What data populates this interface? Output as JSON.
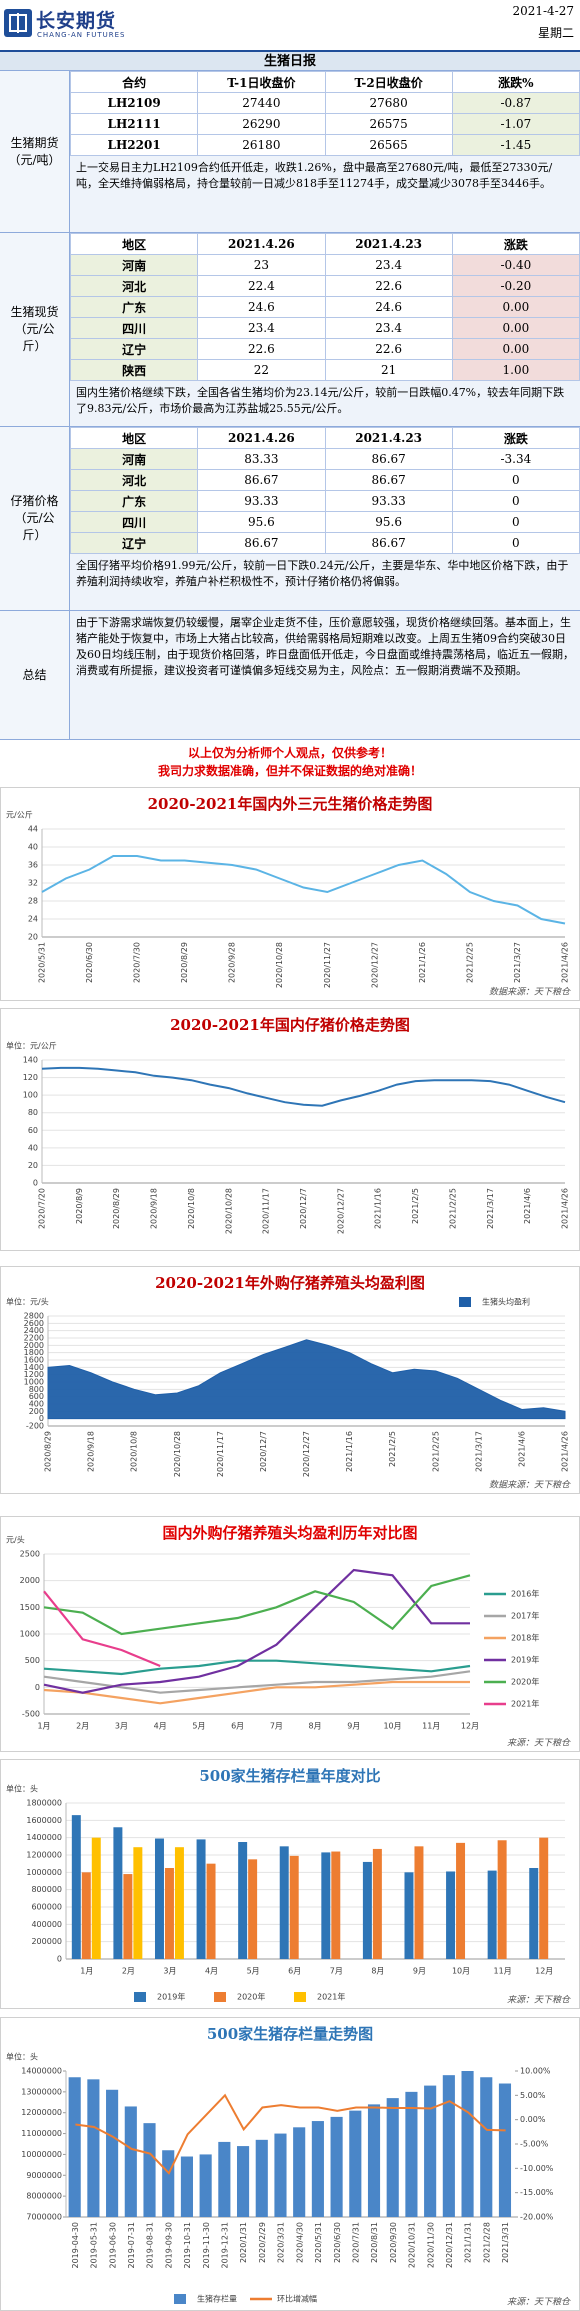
{
  "header": {
    "company": "长安期货",
    "company_en": "CHANG-AN FUTURES",
    "date": "2021-4-27",
    "weekday": "星期二"
  },
  "title": "生猪日报",
  "sections": [
    {
      "label": "生猪期货（元/吨）",
      "table": {
        "header": [
          "合约",
          "T-1日收盘价",
          "T-2日收盘价",
          "涨跌%"
        ],
        "rows": [
          [
            "LH2109",
            "27440",
            "27680",
            "-0.87"
          ],
          [
            "LH2111",
            "26290",
            "26575",
            "-1.07"
          ],
          [
            "LH2201",
            "26180",
            "26565",
            "-1.45"
          ]
        ]
      },
      "text": "上一交易日主力LH2109合约低开低走，收跌1.26%，盘中最高至27680元/吨，最低至27330元/吨，全天维持偏弱格局，持仓量较前一日减少818手至11274手，成交量减少3078手至3446手。"
    },
    {
      "label": "生猪现货（元/公斤）",
      "table": {
        "header": [
          "地区",
          "2021.4.26",
          "2021.4.23",
          "涨跌"
        ],
        "rows": [
          [
            "河南",
            "23",
            "23.4",
            "-0.40"
          ],
          [
            "河北",
            "22.4",
            "22.6",
            "-0.20"
          ],
          [
            "广东",
            "24.6",
            "24.6",
            "0.00"
          ],
          [
            "四川",
            "23.4",
            "23.4",
            "0.00"
          ],
          [
            "辽宁",
            "22.6",
            "22.6",
            "0.00"
          ],
          [
            "陕西",
            "22",
            "21",
            "1.00"
          ]
        ]
      },
      "text": "国内生猪价格继续下跌，全国各省生猪均价为23.14元/公斤，较前一日跌幅0.47%，较去年同期下跌了9.83元/公斤，市场价最高为江苏盐城25.55元/公斤。"
    },
    {
      "label": "仔猪价格（元/公斤）",
      "table": {
        "header": [
          "地区",
          "2021.4.26",
          "2021.4.23",
          "涨跌"
        ],
        "rows": [
          [
            "河南",
            "83.33",
            "86.67",
            "-3.34"
          ],
          [
            "河北",
            "86.67",
            "86.67",
            "0"
          ],
          [
            "广东",
            "93.33",
            "93.33",
            "0"
          ],
          [
            "四川",
            "95.6",
            "95.6",
            "0"
          ],
          [
            "辽宁",
            "86.67",
            "86.67",
            "0"
          ]
        ]
      },
      "text": "全国仔猪平均价格91.99元/公斤，较前一日下跌0.24元/公斤，主要是华东、华中地区价格下跌，由于养殖利润持续收窄，养殖户补栏积极性不，预计仔猪价格仍将偏弱。"
    },
    {
      "label": "总结",
      "text": "由于下游需求端恢复仍较缓慢，屠宰企业走货不佳，压价意愿较强，现货价格继续回落。基本面上，生猪产能处于恢复中，市场上大猪占比较高，供给需弱格局短期难以改变。上周五生猪09合约突破30日及60日均线压制，由于现货价格回落，昨日盘面低开低走，今日盘面或维持震荡格局，临近五一假期，消费或有所提振，建议投资者可谨慎偏多短线交易为主，风险点：五一假期消费端不及预期。"
    }
  ],
  "disclaimer": [
    "以上仅为分析师个人观点，仅供参考！",
    "我司力求数据准确，但并不保证数据的绝对准确！"
  ],
  "chart_data": [
    {
      "type": "line",
      "title": "2020-2021年国内外三元生猪价格走势图",
      "y_label": "元/公斤",
      "source": "数据来源：天下粮仓",
      "categories": [
        "2020/5/31",
        null,
        "2020/6/30",
        null,
        "2020/7/30",
        null,
        "2020/8/29",
        null,
        "2020/9/28",
        null,
        "2020/10/28",
        null,
        "2020/11/27",
        null,
        "2020/12/27",
        null,
        "2021/1/26",
        null,
        "2021/2/25",
        null,
        "2021/3/27",
        null,
        "2021/4/26"
      ],
      "values": [
        30,
        33,
        35,
        38,
        38,
        37,
        37,
        36.5,
        36,
        35,
        33,
        31,
        30,
        32,
        34,
        36,
        37,
        34,
        30,
        28,
        27,
        24,
        23
      ],
      "color": "#5bb4e5",
      "ylim": [
        20,
        44
      ],
      "yticks": [
        20,
        24,
        28,
        32,
        36,
        40,
        44
      ],
      "grid": true
    },
    {
      "type": "line",
      "title": "2020-2021年国内仔猪价格走势图",
      "y_label": "单位：元/公斤",
      "categories": [
        "2020/7/20",
        null,
        "2020/8/9",
        null,
        "2020/8/29",
        null,
        "2020/9/18",
        null,
        "2020/10/8",
        null,
        "2020/10/28",
        null,
        "2020/11/17",
        null,
        "2020/12/7",
        null,
        "2020/12/27",
        null,
        "2021/1/16",
        null,
        "2021/2/5",
        null,
        "2021/2/25",
        null,
        "2021/3/17",
        null,
        "2021/4/6",
        null,
        "2021/4/26"
      ],
      "values": [
        130,
        131,
        131,
        130,
        128,
        126,
        122,
        120,
        117,
        112,
        108,
        102,
        97,
        92,
        89,
        88,
        94,
        99,
        105,
        112,
        116,
        117,
        117,
        117,
        116,
        112,
        105,
        98,
        92
      ],
      "color": "#2e75b6",
      "ylim": [
        0,
        140
      ],
      "yticks": [
        0,
        20,
        40,
        60,
        80,
        100,
        120,
        140
      ],
      "grid": true
    },
    {
      "type": "area",
      "title": "2020-2021年外购仔猪养殖头均盈利图",
      "y_label": "单位：元/头",
      "source": "数据来源：天下粮仓",
      "categories": [
        "2020/8/29",
        null,
        "2020/9/18",
        null,
        "2020/10/8",
        null,
        "2020/10/28",
        null,
        "2020/11/17",
        null,
        "2020/12/7",
        null,
        "2020/12/27",
        null,
        "2021/1/16",
        null,
        "2021/2/5",
        null,
        "2021/2/25",
        null,
        "2021/3/17",
        null,
        "2021/4/6",
        null,
        "2021/4/26"
      ],
      "series": [
        {
          "name": "生猪头均盈利",
          "color": "#1f5fa8",
          "values": [
            1400,
            1450,
            1250,
            1000,
            800,
            650,
            700,
            900,
            1250,
            1500,
            1750,
            1950,
            2150,
            2000,
            1800,
            1500,
            1250,
            1350,
            1300,
            1100,
            800,
            500,
            250,
            300,
            200
          ]
        }
      ],
      "ylim": [
        -200,
        2800
      ],
      "yticks": [
        -200,
        0,
        200,
        400,
        600,
        800,
        1000,
        1200,
        1400,
        1600,
        1800,
        2000,
        2200,
        2400,
        2600,
        2800
      ],
      "grid": true,
      "legend": "upper right"
    },
    {
      "type": "line",
      "title": "国内外购仔猪养殖头均盈利历年对比图",
      "y_label": "元/头",
      "source": "来源：天下粮仓",
      "categories": [
        "1月",
        "2月",
        "3月",
        "4月",
        "5月",
        "6月",
        "7月",
        "8月",
        "9月",
        "10月",
        "11月",
        "12月"
      ],
      "series": [
        {
          "name": "2016年",
          "color": "#2a9d8f",
          "values": [
            350,
            300,
            250,
            350,
            400,
            500,
            500,
            450,
            400,
            350,
            300,
            400
          ]
        },
        {
          "name": "2017年",
          "color": "#a6a6a6",
          "values": [
            200,
            100,
            0,
            -100,
            -50,
            0,
            50,
            100,
            100,
            150,
            200,
            300
          ]
        },
        {
          "name": "2018年",
          "color": "#f4a261",
          "values": [
            -50,
            -100,
            -200,
            -300,
            -200,
            -100,
            0,
            0,
            50,
            100,
            100,
            100
          ]
        },
        {
          "name": "2019年",
          "color": "#7030a0",
          "values": [
            50,
            -100,
            50,
            100,
            200,
            400,
            800,
            1500,
            2200,
            2100,
            1200,
            1200
          ]
        },
        {
          "name": "2020年",
          "color": "#4caf50",
          "values": [
            1500,
            1400,
            1000,
            1100,
            1200,
            1300,
            1500,
            1800,
            1600,
            1100,
            1900,
            2100
          ]
        },
        {
          "name": "2021年",
          "color": "#e83e8c",
          "values": [
            1800,
            900,
            700,
            400,
            null,
            null,
            null,
            null,
            null,
            null,
            null,
            null
          ]
        }
      ],
      "ylim": [
        -500,
        2500
      ],
      "yticks": [
        -500,
        0,
        500,
        1000,
        1500,
        2000,
        2500
      ],
      "grid": true,
      "legend": "right"
    },
    {
      "type": "bar",
      "title": "500家生猪存栏量年度对比",
      "y_label": "单位：头",
      "source": "来源：天下粮仓",
      "categories": [
        "1月",
        "2月",
        "3月",
        "4月",
        "5月",
        "6月",
        "7月",
        "8月",
        "9月",
        "10月",
        "11月",
        "12月"
      ],
      "series": [
        {
          "name": "2019年",
          "color": "#2e75b6",
          "values": [
            1660000,
            1520000,
            1390000,
            1380000,
            1350000,
            1300000,
            1230000,
            1120000,
            1000000,
            1010000,
            1020000,
            1050000
          ]
        },
        {
          "name": "2020年",
          "color": "#ed7d31",
          "values": [
            1000000,
            980000,
            1050000,
            1100000,
            1150000,
            1190000,
            1240000,
            1270000,
            1300000,
            1340000,
            1370000,
            1400000
          ]
        },
        {
          "name": "2021年",
          "color": "#ffc000",
          "values": [
            1400000,
            1290000,
            1290000,
            null,
            null,
            null,
            null,
            null,
            null,
            null,
            null,
            null
          ]
        }
      ],
      "ylim": [
        0,
        1800000
      ],
      "yticks": [
        0,
        200000,
        400000,
        600000,
        800000,
        1000000,
        1200000,
        1400000,
        1600000,
        1800000
      ],
      "grid": true,
      "legend": "bottom"
    },
    {
      "type": "bar",
      "title": "500家生猪存栏量走势图",
      "y_label": "单位：头",
      "source": "来源：天下粮仓",
      "categories": [
        "2019-04-30",
        "2019-05-31",
        "2019-06-30",
        "2019-07-31",
        "2019-08-31",
        "2019-09-30",
        "2019-10-31",
        "2019-11-30",
        "2019-12-31",
        "2020/1/31",
        "2020/2/29",
        "2020/3/31",
        "2020/4/30",
        "2020/5/31",
        "2020/6/30",
        "2020/7/31",
        "2020/8/31",
        "2020/9/30",
        "2020/10/31",
        "2020/11/30",
        "2020/12/31",
        "2021/1/31",
        "2021/2/28",
        "2021/3/31"
      ],
      "series": [
        {
          "name": "生猪存栏量",
          "color": "#4a86c8",
          "values": [
            13700000,
            13600000,
            13100000,
            12300000,
            11500000,
            10200000,
            9900000,
            10000000,
            10600000,
            10400000,
            10700000,
            11000000,
            11300000,
            11600000,
            11800000,
            12100000,
            12400000,
            12700000,
            13000000,
            13300000,
            13800000,
            14000000,
            13700000,
            13400000
          ]
        },
        {
          "name": "环比增减幅",
          "color": "#ed7d31",
          "type": "line",
          "axis": "y2",
          "values": [
            -1,
            -1.5,
            -3.5,
            -6,
            -7,
            -11,
            -3,
            1,
            5,
            -2,
            2.5,
            3,
            2.5,
            2.5,
            1.8,
            2.5,
            2.5,
            2.4,
            2.4,
            2.3,
            3.8,
            1.5,
            -2.1,
            -2.2
          ]
        }
      ],
      "ylim": [
        7000000,
        14000000
      ],
      "yticks": [
        7000000,
        8000000,
        9000000,
        10000000,
        11000000,
        12000000,
        13000000,
        14000000
      ],
      "y2lim": [
        -20,
        10
      ],
      "y2ticks": [
        {
          "value": -20,
          "label": "-20.00%"
        },
        {
          "value": -15,
          "label": "-15.00%"
        },
        {
          "value": -10,
          "label": "-10.00%"
        },
        {
          "value": -5,
          "label": "-5.00%"
        },
        {
          "value": 0,
          "label": "0.00%"
        },
        {
          "value": 5,
          "label": "5.00%"
        },
        {
          "value": 10,
          "label": "10.00%"
        }
      ],
      "grid": false,
      "legend": "bottom"
    }
  ]
}
